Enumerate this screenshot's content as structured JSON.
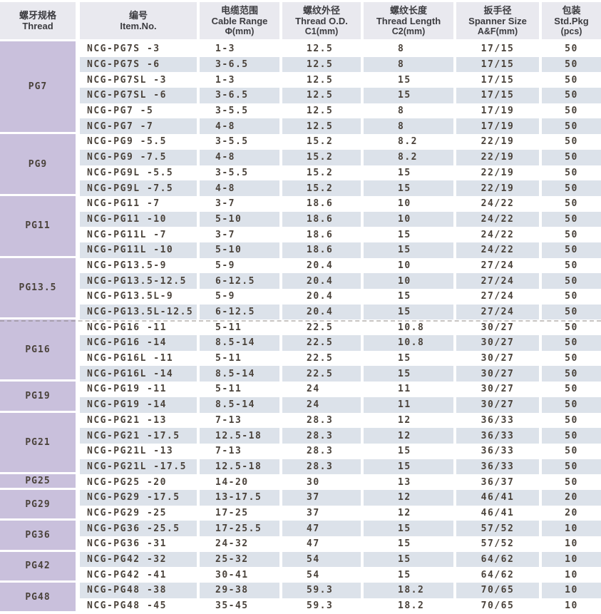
{
  "colors": {
    "header_bg": "#e9e9ef",
    "header_text": "#3c3c40",
    "thread_block_bg": "#c9c0dc",
    "stripe_bg": "#dce2ea",
    "data_text": "#4a423a",
    "row_white": "#ffffff"
  },
  "table": {
    "columns": [
      {
        "zh": "螺牙规格",
        "en": "Thread",
        "unit": ""
      },
      {
        "zh": "编号",
        "en": "Item.No.",
        "unit": ""
      },
      {
        "zh": "电缆范围",
        "en": "Cable Range",
        "unit": "Φ(mm)"
      },
      {
        "zh": "螺纹外径",
        "en": "Thread O.D.",
        "unit": "C1(mm)"
      },
      {
        "zh": "螺纹长度",
        "en": "Thread Length",
        "unit": "C2(mm)"
      },
      {
        "zh": "扳手径",
        "en": "Spanner Size",
        "unit": "A&F(mm)"
      },
      {
        "zh": "包装",
        "en": "Std.Pkg",
        "unit": "(pcs)"
      }
    ],
    "groups": [
      {
        "thread": "PG7",
        "rows": [
          [
            "NCG-PG7S -3",
            "1-3",
            "12.5",
            "8",
            "17/15",
            "50"
          ],
          [
            "NCG-PG7S -6",
            "3-6.5",
            "12.5",
            "8",
            "17/15",
            "50"
          ],
          [
            "NCG-PG7SL -3",
            "1-3",
            "12.5",
            "15",
            "17/15",
            "50"
          ],
          [
            "NCG-PG7SL -6",
            "3-6.5",
            "12.5",
            "15",
            "17/15",
            "50"
          ],
          [
            "NCG-PG7 -5",
            "3-5.5",
            "12.5",
            "8",
            "17/19",
            "50"
          ],
          [
            "NCG-PG7 -7",
            "4-8",
            "12.5",
            "8",
            "17/19",
            "50"
          ]
        ]
      },
      {
        "thread": "PG9",
        "rows": [
          [
            "NCG-PG9 -5.5",
            "3-5.5",
            "15.2",
            "8.2",
            "22/19",
            "50"
          ],
          [
            "NCG-PG9 -7.5",
            "4-8",
            "15.2",
            "8.2",
            "22/19",
            "50"
          ],
          [
            "NCG-PG9L -5.5",
            "3-5.5",
            "15.2",
            "15",
            "22/19",
            "50"
          ],
          [
            "NCG-PG9L -7.5",
            "4-8",
            "15.2",
            "15",
            "22/19",
            "50"
          ]
        ]
      },
      {
        "thread": "PG11",
        "rows": [
          [
            "NCG-PG11 -7",
            "3-7",
            "18.6",
            "10",
            "24/22",
            "50"
          ],
          [
            "NCG-PG11 -10",
            "5-10",
            "18.6",
            "10",
            "24/22",
            "50"
          ],
          [
            "NCG-PG11L -7",
            "3-7",
            "18.6",
            "15",
            "24/22",
            "50"
          ],
          [
            "NCG-PG11L -10",
            "5-10",
            "18.6",
            "15",
            "24/22",
            "50"
          ]
        ]
      },
      {
        "thread": "PG13.5",
        "rows": [
          [
            "NCG-PG13.5-9",
            "5-9",
            "20.4",
            "10",
            "27/24",
            "50"
          ],
          [
            "NCG-PG13.5-12.5",
            "6-12.5",
            "20.4",
            "10",
            "27/24",
            "50"
          ],
          [
            "NCG-PG13.5L-9",
            "5-9",
            "20.4",
            "15",
            "27/24",
            "50"
          ],
          [
            "NCG-PG13.5L-12.5",
            "6-12.5",
            "20.4",
            "15",
            "27/24",
            "50"
          ]
        ]
      },
      {
        "thread": "PG16",
        "rows": [
          [
            "NCG-PG16 -11",
            "5-11",
            "22.5",
            "10.8",
            "30/27",
            "50"
          ],
          [
            "NCG-PG16 -14",
            "8.5-14",
            "22.5",
            "10.8",
            "30/27",
            "50"
          ],
          [
            "NCG-PG16L -11",
            "5-11",
            "22.5",
            "15",
            "30/27",
            "50"
          ],
          [
            "NCG-PG16L -14",
            "8.5-14",
            "22.5",
            "15",
            "30/27",
            "50"
          ]
        ]
      },
      {
        "thread": "PG19",
        "rows": [
          [
            "NCG-PG19 -11",
            "5-11",
            "24",
            "11",
            "30/27",
            "50"
          ],
          [
            "NCG-PG19 -14",
            "8.5-14",
            "24",
            "11",
            "30/27",
            "50"
          ]
        ]
      },
      {
        "thread": "PG21",
        "rows": [
          [
            "NCG-PG21 -13",
            "7-13",
            "28.3",
            "12",
            "36/33",
            "50"
          ],
          [
            "NCG-PG21 -17.5",
            "12.5-18",
            "28.3",
            "12",
            "36/33",
            "50"
          ],
          [
            "NCG-PG21L -13",
            "7-13",
            "28.3",
            "15",
            "36/33",
            "50"
          ],
          [
            "NCG-PG21L -17.5",
            "12.5-18",
            "28.3",
            "15",
            "36/33",
            "50"
          ]
        ]
      },
      {
        "thread": "PG25",
        "rows": [
          [
            "NCG-PG25 -20",
            "14-20",
            "30",
            "13",
            "36/37",
            "50"
          ]
        ]
      },
      {
        "thread": "PG29",
        "rows": [
          [
            "NCG-PG29 -17.5",
            "13-17.5",
            "37",
            "12",
            "46/41",
            "20"
          ],
          [
            "NCG-PG29 -25",
            "17-25",
            "37",
            "12",
            "46/41",
            "20"
          ]
        ]
      },
      {
        "thread": "PG36",
        "rows": [
          [
            "NCG-PG36 -25.5",
            "17-25.5",
            "47",
            "15",
            "57/52",
            "10"
          ],
          [
            "NCG-PG36 -31",
            "24-32",
            "47",
            "15",
            "57/52",
            "10"
          ]
        ]
      },
      {
        "thread": "PG42",
        "rows": [
          [
            "NCG-PG42 -32",
            "25-32",
            "54",
            "15",
            "64/62",
            "10"
          ],
          [
            "NCG-PG42 -41",
            "30-41",
            "54",
            "15",
            "64/62",
            "10"
          ]
        ]
      },
      {
        "thread": "PG48",
        "rows": [
          [
            "NCG-PG48 -38",
            "29-38",
            "59.3",
            "18.2",
            "70/65",
            "10"
          ],
          [
            "NCG-PG48 -45",
            "35-45",
            "59.3",
            "18.2",
            "70/65",
            "10"
          ]
        ]
      }
    ]
  }
}
